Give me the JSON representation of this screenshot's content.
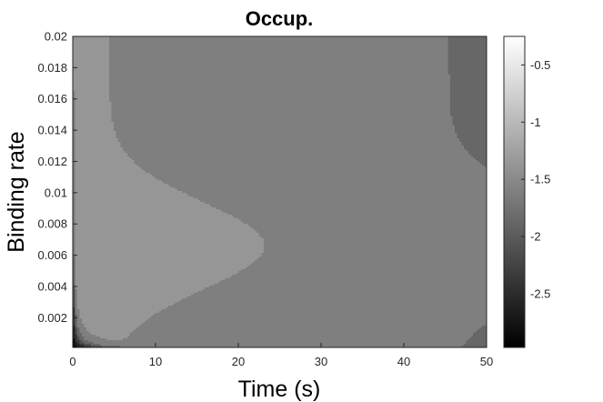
{
  "chart_data": {
    "type": "contour",
    "title": "Occup.",
    "xlabel": "Time (s)",
    "ylabel": "Binding rate",
    "xlim": [
      0,
      50
    ],
    "ylim": [
      0.0001,
      0.02
    ],
    "x_ticks": [
      "0",
      "10",
      "20",
      "30",
      "40",
      "50"
    ],
    "y_ticks": [
      "0.002",
      "0.004",
      "0.006",
      "0.008",
      "0.01",
      "0.012",
      "0.014",
      "0.016",
      "0.018",
      "0.02"
    ],
    "colorbar": {
      "colormap": "gray",
      "range": [
        -2.97,
        -0.25
      ],
      "ticks": [
        "-0.5",
        "-1",
        "-1.5",
        "-2",
        "-2.5"
      ],
      "tick_values": [
        -0.5,
        -1,
        -1.5,
        -2,
        -2.5
      ]
    },
    "contour_levels": [
      -2.75,
      -2.5,
      -2.25,
      -2.0,
      -1.75,
      -1.5
    ],
    "fill_values": [
      -2.87,
      -2.62,
      -2.37,
      -2.12,
      -1.87,
      -1.62,
      -1.37
    ]
  }
}
